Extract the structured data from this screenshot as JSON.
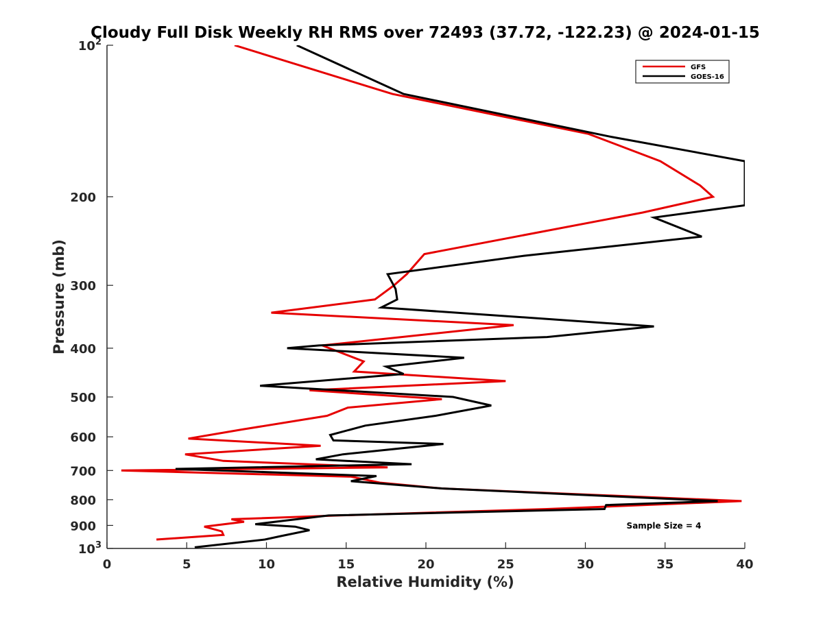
{
  "chart_data": {
    "type": "line",
    "title": "Cloudy Full Disk Weekly RH RMS over 72493 (37.72, -122.23) @ 2024-01-15",
    "xlabel": "Relative Humidity (%)",
    "ylabel": "Pressure (mb)",
    "xlim": [
      0,
      40
    ],
    "ylim": [
      100,
      1000
    ],
    "y_scale": "log",
    "y_reversed": true,
    "grid": false,
    "legend_position": "top-right",
    "x_ticks": [
      0,
      5,
      10,
      15,
      20,
      25,
      30,
      35,
      40
    ],
    "x_tick_labels": [
      "0",
      "5",
      "10",
      "15",
      "20",
      "25",
      "30",
      "35",
      "40"
    ],
    "y_ticks": [
      {
        "value": 100,
        "base": "10",
        "exp": "2"
      },
      {
        "value": 200,
        "label": "200"
      },
      {
        "value": 300,
        "label": "300"
      },
      {
        "value": 400,
        "label": "400"
      },
      {
        "value": 500,
        "label": "500"
      },
      {
        "value": 600,
        "label": "600"
      },
      {
        "value": 700,
        "label": "700"
      },
      {
        "value": 800,
        "label": "800"
      },
      {
        "value": 900,
        "label": "900"
      },
      {
        "value": 1000,
        "base": "10",
        "exp": "3"
      }
    ],
    "series": [
      {
        "name": "GFS",
        "color": "#e60000",
        "points": [
          [
            8.0,
            100
          ],
          [
            17.9,
            125
          ],
          [
            30.2,
            150
          ],
          [
            34.7,
            170
          ],
          [
            37.2,
            190
          ],
          [
            38.0,
            200
          ],
          [
            33.6,
            215
          ],
          [
            19.9,
            260
          ],
          [
            18.8,
            285
          ],
          [
            18.0,
            300
          ],
          [
            16.8,
            320
          ],
          [
            10.3,
            340
          ],
          [
            25.5,
            360
          ],
          [
            13.5,
            395
          ],
          [
            16.1,
            425
          ],
          [
            15.5,
            445
          ],
          [
            25.0,
            465
          ],
          [
            12.7,
            485
          ],
          [
            21.0,
            505
          ],
          [
            15.1,
            525
          ],
          [
            13.8,
            545
          ],
          [
            8.5,
            580
          ],
          [
            5.1,
            605
          ],
          [
            13.4,
            625
          ],
          [
            4.9,
            650
          ],
          [
            7.3,
            670
          ],
          [
            17.6,
            690
          ],
          [
            0.9,
            700
          ],
          [
            15.3,
            720
          ],
          [
            17.1,
            740
          ],
          [
            21.0,
            760
          ],
          [
            39.8,
            805
          ],
          [
            27.6,
            835
          ],
          [
            14.5,
            860
          ],
          [
            7.8,
            875
          ],
          [
            8.6,
            885
          ],
          [
            6.1,
            905
          ],
          [
            7.2,
            925
          ],
          [
            7.3,
            940
          ],
          [
            3.1,
            960
          ]
        ]
      },
      {
        "name": "GOES-16",
        "color": "#000000",
        "points": [
          [
            11.9,
            100
          ],
          [
            18.6,
            125
          ],
          [
            31.6,
            152
          ],
          [
            40.0,
            170
          ],
          [
            40.0,
            208
          ],
          [
            34.3,
            220
          ],
          [
            37.3,
            240
          ],
          [
            26.2,
            262
          ],
          [
            17.6,
            285
          ],
          [
            18.1,
            305
          ],
          [
            18.2,
            320
          ],
          [
            17.2,
            332
          ],
          [
            34.3,
            362
          ],
          [
            27.6,
            380
          ],
          [
            13.3,
            395
          ],
          [
            11.3,
            400
          ],
          [
            22.4,
            418
          ],
          [
            17.5,
            435
          ],
          [
            18.6,
            450
          ],
          [
            9.6,
            475
          ],
          [
            21.7,
            500
          ],
          [
            24.1,
            520
          ],
          [
            20.6,
            545
          ],
          [
            16.2,
            570
          ],
          [
            14.0,
            595
          ],
          [
            14.2,
            610
          ],
          [
            21.1,
            620
          ],
          [
            14.8,
            650
          ],
          [
            13.1,
            665
          ],
          [
            19.1,
            680
          ],
          [
            4.3,
            695
          ],
          [
            16.9,
            718
          ],
          [
            15.3,
            735
          ],
          [
            21.0,
            760
          ],
          [
            38.3,
            805
          ],
          [
            31.3,
            820
          ],
          [
            31.2,
            835
          ],
          [
            13.9,
            860
          ],
          [
            9.3,
            895
          ],
          [
            11.8,
            905
          ],
          [
            12.7,
            920
          ],
          [
            10.9,
            945
          ],
          [
            9.9,
            960
          ],
          [
            5.5,
            995
          ]
        ]
      }
    ],
    "annotations": [
      {
        "text": "Sample Size = 4",
        "position": "bottom-right"
      }
    ]
  }
}
